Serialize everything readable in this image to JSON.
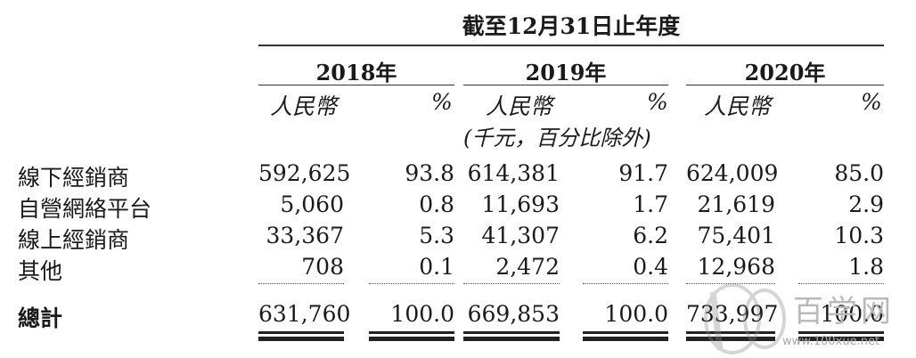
{
  "header": {
    "period": "截至12月31日止年度",
    "years": [
      "2018年",
      "2019年",
      "2020年"
    ],
    "currency": "人民幣",
    "percent": "%",
    "unit_note": "(千元，百分比除外)"
  },
  "rows": [
    {
      "label": "線下經銷商",
      "v2018": "592,625",
      "p2018": "93.8",
      "v2019": "614,381",
      "p2019": "91.7",
      "v2020": "624,009",
      "p2020": "85.0"
    },
    {
      "label": "自營網絡平台",
      "v2018": "5,060",
      "p2018": "0.8",
      "v2019": "11,693",
      "p2019": "1.7",
      "v2020": "21,619",
      "p2020": "2.9"
    },
    {
      "label": "線上經銷商",
      "v2018": "33,367",
      "p2018": "5.3",
      "v2019": "41,307",
      "p2019": "6.2",
      "v2020": "75,401",
      "p2020": "10.3"
    },
    {
      "label": "其他",
      "v2018": "708",
      "p2018": "0.1",
      "v2019": "2,472",
      "p2019": "0.4",
      "v2020": "12,968",
      "p2020": "1.8"
    }
  ],
  "total": {
    "label": "總計",
    "v2018": "631,760",
    "p2018": "100.0",
    "v2019": "669,853",
    "p2019": "100.0",
    "v2020": "733,997",
    "p2020": "100.0"
  },
  "watermark": {
    "logo_text": "100",
    "brand": "百学网",
    "url": "www.100xue.net"
  },
  "colors": {
    "text": "#1a1a1a",
    "rule": "#333333",
    "watermark": "#b8b8b8"
  }
}
